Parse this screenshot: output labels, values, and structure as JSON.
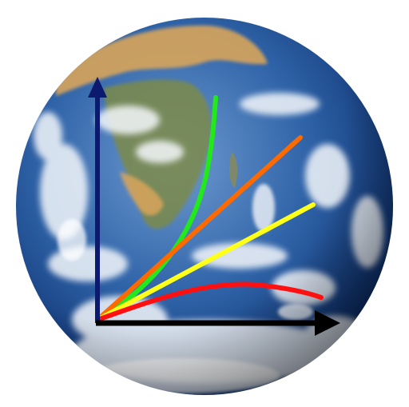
{
  "colors": {
    "background": "#ffffff",
    "ocean_deep": "#0c2f6e",
    "ocean_mid": "#2f63a8",
    "ocean_light": "#6f9bd0",
    "land_desert": "#d9a55a",
    "land_green": "#7c8a4a",
    "cloud": "#f4f7fb",
    "y_axis": "#0b1a6e",
    "x_axis": "#000000",
    "curve_green": "#22e81c",
    "curve_orange": "#ff6a00",
    "curve_yellow": "#ffff1a",
    "curve_red": "#ff1010"
  },
  "icons": {
    "globe": "earth-globe-icon",
    "y_arrow": "arrow-up-icon",
    "x_arrow": "arrow-right-icon"
  },
  "curves": [
    {
      "name": "green-curve",
      "shape": "exponential",
      "color_key": "curve_green"
    },
    {
      "name": "orange-line",
      "shape": "linear-steep",
      "color_key": "curve_orange"
    },
    {
      "name": "yellow-line",
      "shape": "linear-shallow",
      "color_key": "curve_yellow"
    },
    {
      "name": "red-curve",
      "shape": "saturating",
      "color_key": "curve_red"
    }
  ]
}
